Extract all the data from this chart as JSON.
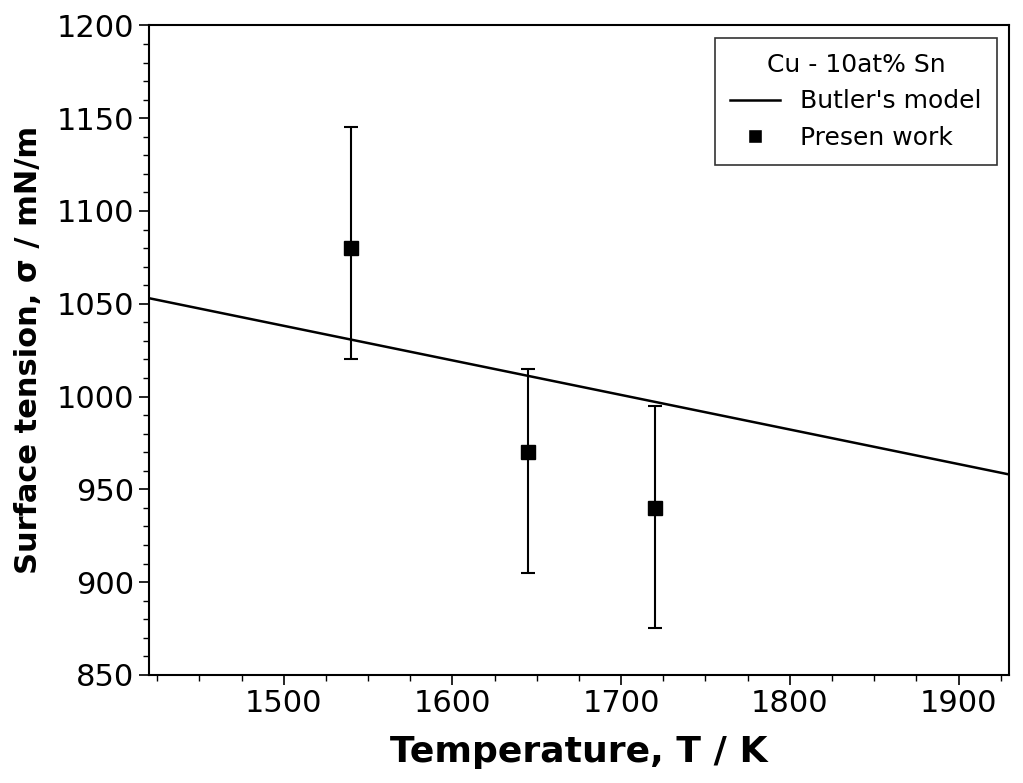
{
  "title": "Cu - 10at% Sn",
  "xlabel": "Temperature, T / K",
  "ylabel": "Surface tension, σ / mN/m",
  "xlim": [
    1420,
    1930
  ],
  "ylim": [
    850,
    1200
  ],
  "xticks": [
    1500,
    1600,
    1700,
    1800,
    1900
  ],
  "yticks": [
    850,
    900,
    950,
    1000,
    1050,
    1100,
    1150,
    1200
  ],
  "data_x": [
    1540,
    1645,
    1720
  ],
  "data_y": [
    1080,
    970,
    940
  ],
  "yerr_upper": [
    65,
    45,
    55
  ],
  "yerr_lower": [
    60,
    65,
    65
  ],
  "line_x": [
    1420,
    1930
  ],
  "line_y": [
    1053,
    958
  ],
  "line_color": "#000000",
  "marker_color": "#000000",
  "legend_title": "Cu - 10at% Sn",
  "legend_line_label": "Butler's model",
  "legend_marker_label": "Presen work",
  "bg_color": "#ffffff",
  "xlabel_fontsize": 26,
  "ylabel_fontsize": 22,
  "tick_fontsize": 22,
  "legend_fontsize": 18,
  "legend_title_fontsize": 18,
  "marker_size": 10,
  "line_width": 1.8,
  "capsize": 5,
  "elinewidth": 1.5,
  "capthick": 1.5
}
